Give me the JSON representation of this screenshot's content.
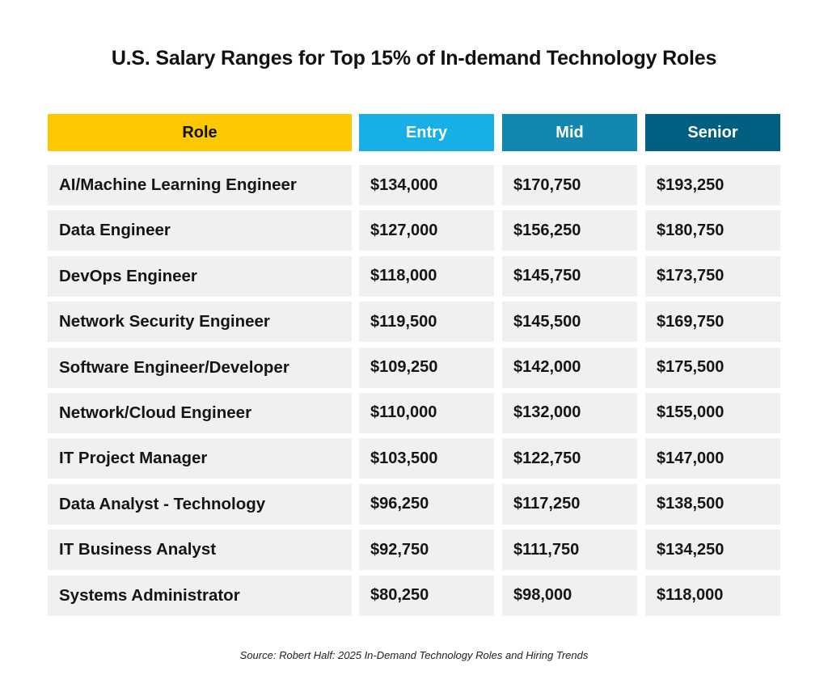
{
  "chart_data": {
    "type": "table",
    "title": "U.S. Salary Ranges for Top 15% of In-demand Technology Roles",
    "columns": [
      "Role",
      "Entry",
      "Mid",
      "Senior"
    ],
    "header_colors": [
      "#fec800",
      "#16b0e6",
      "#1487b0",
      "#015f81"
    ],
    "rows": [
      [
        "AI/Machine Learning Engineer",
        "$134,000",
        "$170,750",
        "$193,250"
      ],
      [
        "Data Engineer",
        "$127,000",
        "$156,250",
        "$180,750"
      ],
      [
        "DevOps Engineer",
        "$118,000",
        "$145,750",
        "$173,750"
      ],
      [
        "Network Security Engineer",
        "$119,500",
        "$145,500",
        "$169,750"
      ],
      [
        "Software Engineer/Developer",
        "$109,250",
        "$142,000",
        "$175,500"
      ],
      [
        "Network/Cloud Engineer",
        "$110,000",
        "$132,000",
        "$155,000"
      ],
      [
        "IT Project Manager",
        "$103,500",
        "$122,750",
        "$147,000"
      ],
      [
        "Data Analyst - Technology",
        "$96,250",
        "$117,250",
        "$138,500"
      ],
      [
        "IT Business Analyst",
        "$92,750",
        "$111,750",
        "$134,250"
      ],
      [
        "Systems Administrator",
        "$80,250",
        "$98,000",
        "$118,000"
      ]
    ],
    "source": "Source: Robert Half: 2025 In-Demand Technology Roles and Hiring Trends"
  }
}
